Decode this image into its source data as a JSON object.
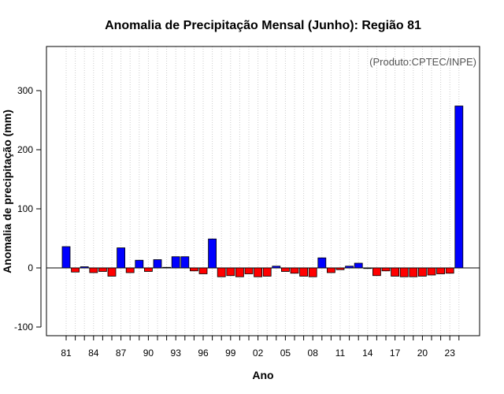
{
  "chart_data": {
    "type": "bar",
    "title": "Anomalia de Precipitação Mensal (Junho): Região 81",
    "credit": "(Produto:CPTEC/INPE)",
    "xlabel": "Ano",
    "ylabel": "Anomalia de precipitação (mm)",
    "ylim": [
      -115,
      385
    ],
    "yticks": [
      -100,
      0,
      100,
      200,
      300
    ],
    "grid": "vertical dotted",
    "colors": {
      "positive": "#0000ff",
      "negative": "#ff0000",
      "zero_line": "#000000",
      "grid": "#cccccc"
    },
    "categories": [
      "81",
      "82",
      "83",
      "84",
      "85",
      "86",
      "87",
      "88",
      "89",
      "90",
      "91",
      "92",
      "93",
      "94",
      "95",
      "96",
      "97",
      "98",
      "99",
      "00",
      "01",
      "02",
      "03",
      "04",
      "05",
      "06",
      "07",
      "08",
      "09",
      "10",
      "11",
      "12",
      "13",
      "14",
      "15",
      "16",
      "17",
      "18",
      "19",
      "20",
      "21",
      "22",
      "23",
      "24"
    ],
    "xtick_labels": [
      "81",
      "84",
      "87",
      "90",
      "93",
      "96",
      "99",
      "02",
      "05",
      "08",
      "11",
      "14",
      "17",
      "20",
      "23"
    ],
    "values": [
      36,
      -7,
      2,
      -8,
      -6,
      -14,
      34,
      -8,
      13,
      -6,
      14,
      1,
      19,
      19,
      -5,
      -10,
      49,
      -15,
      -13,
      -15,
      -10,
      -15,
      -14,
      3,
      -6,
      -9,
      -14,
      -15,
      17,
      -8,
      -3,
      3,
      8,
      -1,
      -13,
      -5,
      -14,
      -15,
      -15,
      -14,
      -12,
      -10,
      -9,
      274
    ]
  }
}
